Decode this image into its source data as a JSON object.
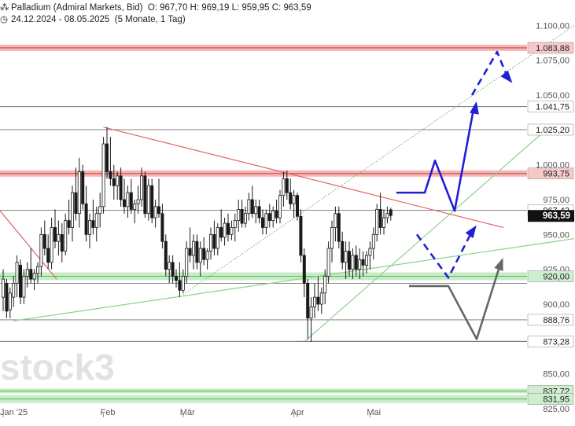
{
  "header": {
    "instrument": "Palladium (Admiral Markets, Bid)",
    "ohlc": "O: 967,70  H: 969,19  L: 959,95  C: 963,59",
    "period": "24.12.2024 - 08.05.2025",
    "span": "(5 Monate, 1 Tag)"
  },
  "watermark": "stock3",
  "colors": {
    "candle": "#1a1a1a",
    "resistance_zone": "#f2b6b6",
    "resistance_line": "#d9534f",
    "support_zone": "#c7ecc7",
    "support_line": "#5cb85c",
    "trend_green": "#8fd18f",
    "trend_red": "#d66",
    "projection_blue": "#1f1fd6",
    "projection_grey": "#666666",
    "last_price_bg": "#111111",
    "grid_label": "#555555"
  },
  "chart_data": {
    "type": "candlestick",
    "x_tick_labels": [
      "Jan '25",
      "Feb",
      "Mär",
      "Apr",
      "Mai"
    ],
    "y_ticks": [
      "1.100,00",
      "1.075,00",
      "1.050,00",
      "1.025,00",
      "1.000,00",
      "975,00",
      "950,00",
      "925,00",
      "900,00",
      "875,00",
      "850,00",
      "825,00"
    ],
    "ylim": [
      825,
      1103
    ],
    "last_price": {
      "value": 963.59,
      "label": "963,59"
    },
    "hidden_label_behind_last": "967,42",
    "horizontal_levels": [
      {
        "value": 1083.88,
        "label": "1.083,88",
        "style": "red-zone"
      },
      {
        "value": 1041.75,
        "label": "1.041,75",
        "style": "grey-line"
      },
      {
        "value": 1025.2,
        "label": "1.025,20",
        "style": "grey-line"
      },
      {
        "value": 993.75,
        "label": "993,75",
        "style": "red-zone"
      },
      {
        "value": 967.42,
        "label": "967,42",
        "style": "grey-line"
      },
      {
        "value": 920.0,
        "label": "920,00",
        "style": "green-zone"
      },
      {
        "value": 915.0,
        "label": "",
        "style": "grey-line"
      },
      {
        "value": 888.76,
        "label": "888,76",
        "style": "grey-line"
      },
      {
        "value": 873.28,
        "label": "873,28",
        "style": "grey-line"
      },
      {
        "value": 837.72,
        "label": "837,72",
        "style": "green-zone-top"
      },
      {
        "value": 831.95,
        "label": "831,95",
        "style": "green-zone"
      }
    ],
    "candles": [
      {
        "d": 0,
        "o": 905,
        "h": 925,
        "l": 895,
        "c": 918
      },
      {
        "d": 1,
        "o": 915,
        "h": 918,
        "l": 890,
        "c": 895
      },
      {
        "d": 2,
        "o": 896,
        "h": 912,
        "l": 890,
        "c": 908
      },
      {
        "d": 3,
        "o": 905,
        "h": 920,
        "l": 898,
        "c": 915
      },
      {
        "d": 4,
        "o": 915,
        "h": 935,
        "l": 905,
        "c": 930
      },
      {
        "d": 5,
        "o": 928,
        "h": 932,
        "l": 900,
        "c": 905
      },
      {
        "d": 6,
        "o": 905,
        "h": 925,
        "l": 900,
        "c": 920
      },
      {
        "d": 7,
        "o": 920,
        "h": 930,
        "l": 912,
        "c": 925
      },
      {
        "d": 8,
        "o": 925,
        "h": 940,
        "l": 915,
        "c": 918
      },
      {
        "d": 9,
        "o": 918,
        "h": 925,
        "l": 910,
        "c": 922
      },
      {
        "d": 10,
        "o": 922,
        "h": 930,
        "l": 915,
        "c": 927
      },
      {
        "d": 11,
        "o": 927,
        "h": 955,
        "l": 920,
        "c": 950
      },
      {
        "d": 12,
        "o": 950,
        "h": 960,
        "l": 935,
        "c": 940
      },
      {
        "d": 13,
        "o": 940,
        "h": 950,
        "l": 925,
        "c": 930
      },
      {
        "d": 14,
        "o": 930,
        "h": 962,
        "l": 925,
        "c": 955
      },
      {
        "d": 15,
        "o": 955,
        "h": 968,
        "l": 940,
        "c": 945
      },
      {
        "d": 16,
        "o": 945,
        "h": 960,
        "l": 935,
        "c": 950
      },
      {
        "d": 17,
        "o": 950,
        "h": 958,
        "l": 930,
        "c": 938
      },
      {
        "d": 18,
        "o": 938,
        "h": 965,
        "l": 935,
        "c": 960
      },
      {
        "d": 19,
        "o": 960,
        "h": 975,
        "l": 950,
        "c": 955
      },
      {
        "d": 20,
        "o": 955,
        "h": 985,
        "l": 945,
        "c": 980
      },
      {
        "d": 21,
        "o": 980,
        "h": 998,
        "l": 960,
        "c": 965
      },
      {
        "d": 22,
        "o": 965,
        "h": 1005,
        "l": 955,
        "c": 995
      },
      {
        "d": 23,
        "o": 995,
        "h": 1000,
        "l": 968,
        "c": 972
      },
      {
        "d": 24,
        "o": 972,
        "h": 985,
        "l": 945,
        "c": 950
      },
      {
        "d": 25,
        "o": 950,
        "h": 965,
        "l": 940,
        "c": 960
      },
      {
        "d": 26,
        "o": 960,
        "h": 975,
        "l": 950,
        "c": 955
      },
      {
        "d": 27,
        "o": 955,
        "h": 970,
        "l": 945,
        "c": 965
      },
      {
        "d": 28,
        "o": 965,
        "h": 980,
        "l": 955,
        "c": 970
      },
      {
        "d": 29,
        "o": 970,
        "h": 1020,
        "l": 965,
        "c": 1015
      },
      {
        "d": 30,
        "o": 1015,
        "h": 1027,
        "l": 990,
        "c": 995
      },
      {
        "d": 31,
        "o": 995,
        "h": 1020,
        "l": 985,
        "c": 990
      },
      {
        "d": 32,
        "o": 990,
        "h": 1000,
        "l": 975,
        "c": 985
      },
      {
        "d": 33,
        "o": 985,
        "h": 995,
        "l": 975,
        "c": 992
      },
      {
        "d": 34,
        "o": 992,
        "h": 998,
        "l": 970,
        "c": 975
      },
      {
        "d": 35,
        "o": 975,
        "h": 990,
        "l": 965,
        "c": 970
      },
      {
        "d": 36,
        "o": 970,
        "h": 985,
        "l": 962,
        "c": 980
      },
      {
        "d": 37,
        "o": 980,
        "h": 990,
        "l": 965,
        "c": 968
      },
      {
        "d": 38,
        "o": 968,
        "h": 975,
        "l": 958,
        "c": 972
      },
      {
        "d": 39,
        "o": 972,
        "h": 985,
        "l": 965,
        "c": 975
      },
      {
        "d": 40,
        "o": 975,
        "h": 998,
        "l": 970,
        "c": 992
      },
      {
        "d": 41,
        "o": 992,
        "h": 995,
        "l": 962,
        "c": 965
      },
      {
        "d": 42,
        "o": 965,
        "h": 990,
        "l": 960,
        "c": 985
      },
      {
        "d": 43,
        "o": 985,
        "h": 990,
        "l": 958,
        "c": 962
      },
      {
        "d": 44,
        "o": 962,
        "h": 975,
        "l": 955,
        "c": 970
      },
      {
        "d": 45,
        "o": 970,
        "h": 990,
        "l": 962,
        "c": 965
      },
      {
        "d": 46,
        "o": 965,
        "h": 972,
        "l": 940,
        "c": 945
      },
      {
        "d": 47,
        "o": 945,
        "h": 950,
        "l": 920,
        "c": 925
      },
      {
        "d": 48,
        "o": 925,
        "h": 935,
        "l": 915,
        "c": 930
      },
      {
        "d": 49,
        "o": 930,
        "h": 935,
        "l": 915,
        "c": 920
      },
      {
        "d": 50,
        "o": 920,
        "h": 925,
        "l": 912,
        "c": 917
      },
      {
        "d": 51,
        "o": 917,
        "h": 930,
        "l": 905,
        "c": 910
      },
      {
        "d": 52,
        "o": 910,
        "h": 925,
        "l": 908,
        "c": 920
      },
      {
        "d": 53,
        "o": 920,
        "h": 945,
        "l": 915,
        "c": 940
      },
      {
        "d": 54,
        "o": 940,
        "h": 955,
        "l": 930,
        "c": 935
      },
      {
        "d": 55,
        "o": 935,
        "h": 950,
        "l": 925,
        "c": 945
      },
      {
        "d": 56,
        "o": 945,
        "h": 950,
        "l": 925,
        "c": 930
      },
      {
        "d": 57,
        "o": 930,
        "h": 945,
        "l": 920,
        "c": 940
      },
      {
        "d": 58,
        "o": 940,
        "h": 948,
        "l": 928,
        "c": 932
      },
      {
        "d": 59,
        "o": 932,
        "h": 940,
        "l": 925,
        "c": 938
      },
      {
        "d": 60,
        "o": 938,
        "h": 955,
        "l": 932,
        "c": 950
      },
      {
        "d": 61,
        "o": 950,
        "h": 960,
        "l": 935,
        "c": 940
      },
      {
        "d": 62,
        "o": 940,
        "h": 958,
        "l": 935,
        "c": 955
      },
      {
        "d": 63,
        "o": 955,
        "h": 968,
        "l": 945,
        "c": 948
      },
      {
        "d": 64,
        "o": 948,
        "h": 962,
        "l": 942,
        "c": 958
      },
      {
        "d": 65,
        "o": 958,
        "h": 965,
        "l": 945,
        "c": 950
      },
      {
        "d": 66,
        "o": 950,
        "h": 960,
        "l": 946,
        "c": 955
      },
      {
        "d": 67,
        "o": 955,
        "h": 965,
        "l": 945,
        "c": 960
      },
      {
        "d": 68,
        "o": 960,
        "h": 975,
        "l": 952,
        "c": 968
      },
      {
        "d": 69,
        "o": 968,
        "h": 975,
        "l": 955,
        "c": 958
      },
      {
        "d": 70,
        "o": 958,
        "h": 970,
        "l": 955,
        "c": 965
      },
      {
        "d": 71,
        "o": 965,
        "h": 980,
        "l": 960,
        "c": 975
      },
      {
        "d": 72,
        "o": 975,
        "h": 985,
        "l": 962,
        "c": 965
      },
      {
        "d": 73,
        "o": 965,
        "h": 975,
        "l": 958,
        "c": 970
      },
      {
        "d": 74,
        "o": 970,
        "h": 975,
        "l": 958,
        "c": 962
      },
      {
        "d": 75,
        "o": 962,
        "h": 968,
        "l": 950,
        "c": 955
      },
      {
        "d": 76,
        "o": 955,
        "h": 968,
        "l": 950,
        "c": 965
      },
      {
        "d": 77,
        "o": 965,
        "h": 972,
        "l": 955,
        "c": 960
      },
      {
        "d": 78,
        "o": 960,
        "h": 970,
        "l": 955,
        "c": 967
      },
      {
        "d": 79,
        "o": 967,
        "h": 975,
        "l": 958,
        "c": 962
      },
      {
        "d": 80,
        "o": 962,
        "h": 982,
        "l": 958,
        "c": 978
      },
      {
        "d": 81,
        "o": 978,
        "h": 995,
        "l": 970,
        "c": 990
      },
      {
        "d": 82,
        "o": 990,
        "h": 996,
        "l": 975,
        "c": 980
      },
      {
        "d": 83,
        "o": 980,
        "h": 990,
        "l": 968,
        "c": 972
      },
      {
        "d": 84,
        "o": 972,
        "h": 982,
        "l": 962,
        "c": 978
      },
      {
        "d": 85,
        "o": 978,
        "h": 980,
        "l": 960,
        "c": 963
      },
      {
        "d": 86,
        "o": 963,
        "h": 968,
        "l": 930,
        "c": 935
      },
      {
        "d": 87,
        "o": 935,
        "h": 940,
        "l": 905,
        "c": 915
      },
      {
        "d": 88,
        "o": 915,
        "h": 918,
        "l": 875,
        "c": 890
      },
      {
        "d": 89,
        "o": 890,
        "h": 905,
        "l": 873,
        "c": 898
      },
      {
        "d": 90,
        "o": 898,
        "h": 915,
        "l": 890,
        "c": 905
      },
      {
        "d": 91,
        "o": 905,
        "h": 920,
        "l": 895,
        "c": 900
      },
      {
        "d": 92,
        "o": 900,
        "h": 912,
        "l": 893,
        "c": 908
      },
      {
        "d": 93,
        "o": 908,
        "h": 925,
        "l": 900,
        "c": 920
      },
      {
        "d": 94,
        "o": 920,
        "h": 945,
        "l": 915,
        "c": 940
      },
      {
        "d": 95,
        "o": 940,
        "h": 960,
        "l": 930,
        "c": 955
      },
      {
        "d": 96,
        "o": 955,
        "h": 970,
        "l": 945,
        "c": 965
      },
      {
        "d": 97,
        "o": 965,
        "h": 970,
        "l": 940,
        "c": 945
      },
      {
        "d": 98,
        "o": 945,
        "h": 952,
        "l": 925,
        "c": 930
      },
      {
        "d": 99,
        "o": 930,
        "h": 945,
        "l": 918,
        "c": 938
      },
      {
        "d": 100,
        "o": 938,
        "h": 945,
        "l": 920,
        "c": 925
      },
      {
        "d": 101,
        "o": 925,
        "h": 940,
        "l": 918,
        "c": 935
      },
      {
        "d": 102,
        "o": 935,
        "h": 942,
        "l": 920,
        "c": 925
      },
      {
        "d": 103,
        "o": 925,
        "h": 940,
        "l": 918,
        "c": 932
      },
      {
        "d": 104,
        "o": 932,
        "h": 938,
        "l": 920,
        "c": 928
      },
      {
        "d": 105,
        "o": 928,
        "h": 938,
        "l": 922,
        "c": 935
      },
      {
        "d": 106,
        "o": 935,
        "h": 945,
        "l": 925,
        "c": 940
      },
      {
        "d": 107,
        "o": 940,
        "h": 955,
        "l": 932,
        "c": 950
      },
      {
        "d": 108,
        "o": 950,
        "h": 972,
        "l": 945,
        "c": 968
      },
      {
        "d": 109,
        "o": 968,
        "h": 980,
        "l": 950,
        "c": 955
      },
      {
        "d": 110,
        "o": 955,
        "h": 968,
        "l": 950,
        "c": 962
      },
      {
        "d": 111,
        "o": 962,
        "h": 970,
        "l": 958,
        "c": 965
      },
      {
        "d": 112,
        "o": 967.7,
        "h": 969.19,
        "l": 959.95,
        "c": 963.59
      }
    ]
  }
}
